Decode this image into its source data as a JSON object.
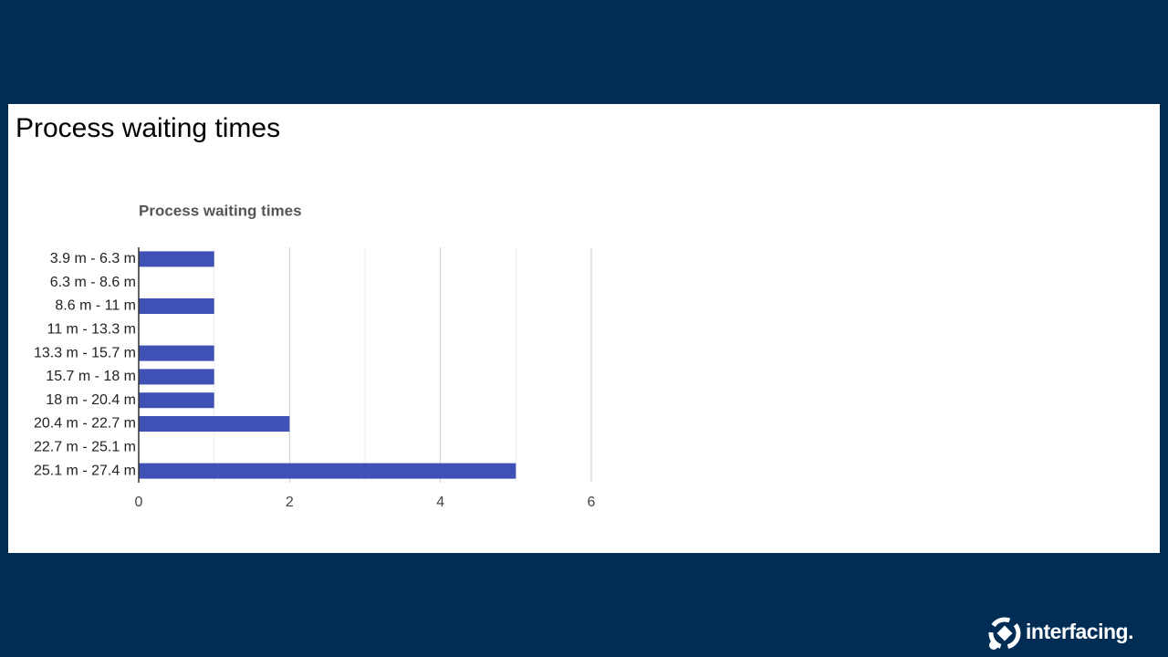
{
  "panel": {
    "title": "Process waiting times"
  },
  "chart_data": {
    "type": "hbar",
    "title": "Process waiting times",
    "categories": [
      "3.9 m - 6.3 m",
      "6.3 m - 8.6 m",
      "8.6 m - 11 m",
      "11 m - 13.3 m",
      "13.3 m - 15.7 m",
      "15.7 m - 18 m",
      "18 m - 20.4 m",
      "20.4 m - 22.7 m",
      "22.7 m - 25.1 m",
      "25.1 m - 27.4 m"
    ],
    "values": [
      1,
      0,
      1,
      0,
      1,
      1,
      1,
      2,
      0,
      5
    ],
    "color": "#3f51b5",
    "xlim": [
      0,
      6
    ],
    "xticks": [
      0,
      2,
      4,
      6
    ],
    "minor_xticks": [
      1,
      3,
      5
    ],
    "grid": true
  },
  "logo": {
    "text": "interfacing."
  }
}
